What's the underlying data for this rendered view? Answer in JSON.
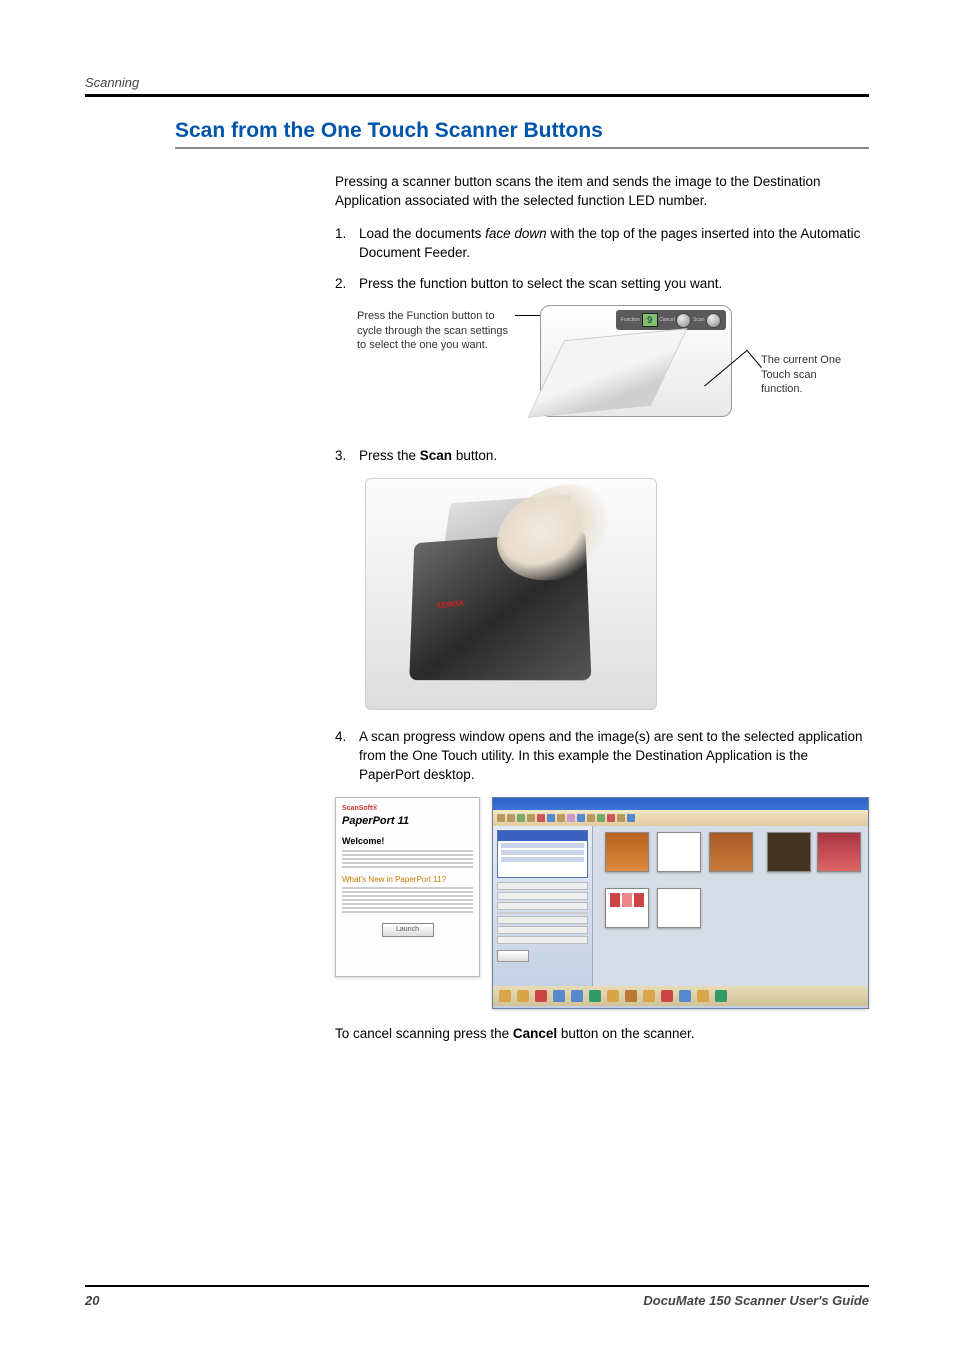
{
  "runningHead": "Scanning",
  "sectionTitle": "Scan from the One Touch Scanner Buttons",
  "intro": "Pressing a scanner button scans the item and sends the image to the Destination Application associated with the selected function LED number.",
  "steps": {
    "s1": {
      "num": "1.",
      "pre": "Load the documents ",
      "em": "face down",
      "post": " with the top of the pages inserted into the Automatic Document Feeder."
    },
    "s2": {
      "num": "2.",
      "text": "Press the function button to select the scan setting you want."
    },
    "s3": {
      "num": "3.",
      "pre": "Press the ",
      "strong": "Scan",
      "post": " button."
    },
    "s4": {
      "num": "4.",
      "text": "A scan progress window opens and the image(s) are sent to the selected application from the One Touch utility. In this example the Destination Application is the PaperPort desktop."
    }
  },
  "diagram1": {
    "leftLabel": "Press the Function button to cycle through the scan settings to select the one you want.",
    "rightLabel": "The current One Touch scan function.",
    "lcd": "9",
    "btnLabels": {
      "a": "Function",
      "b": "Cancel",
      "c": "Scan"
    }
  },
  "scannerLabel": "XEROX",
  "welcome": {
    "brandTop": "ScanSoft®",
    "brand": "PaperPort 11",
    "heading": "Welcome!",
    "news": "What's New in PaperPort 11?",
    "button": "Launch"
  },
  "cancelLine": {
    "pre": "To cancel scanning press the ",
    "strong": "Cancel",
    "post": " button on the scanner."
  },
  "footer": {
    "pageNum": "20",
    "guide": "DocuMate 150 Scanner User's Guide"
  }
}
